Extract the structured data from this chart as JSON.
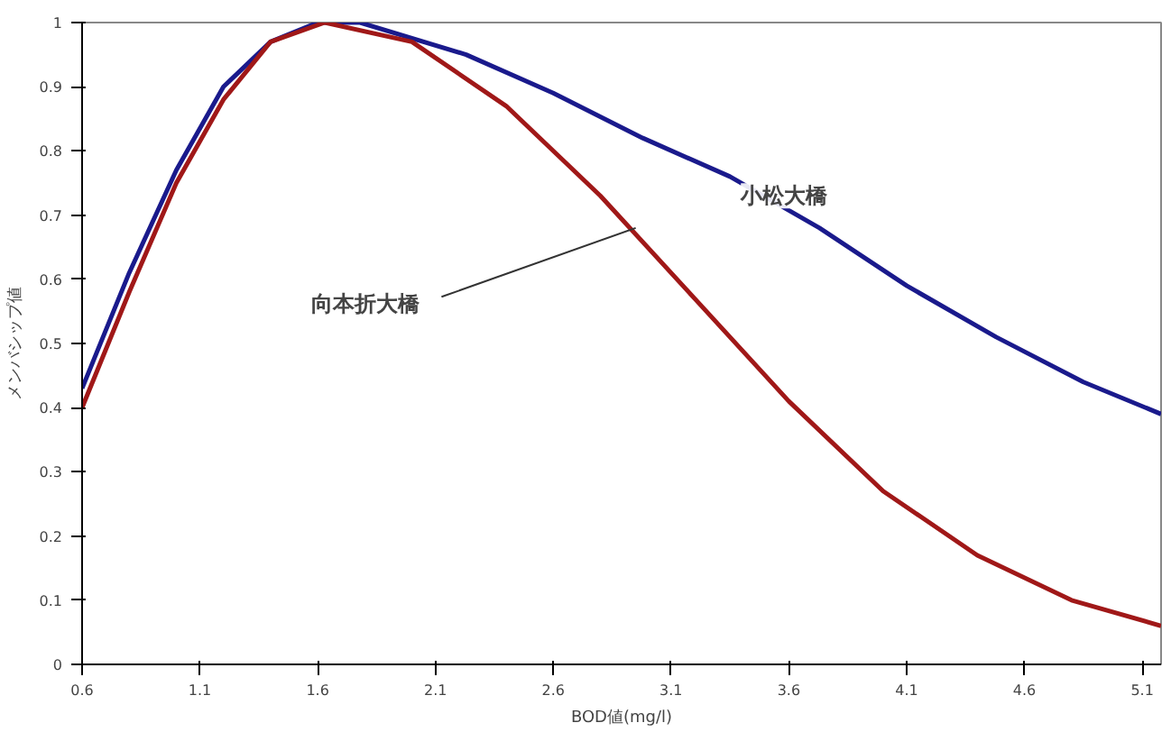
{
  "chart_data": {
    "type": "line",
    "xlabel": "BOD値(mg/l)",
    "ylabel": "メンバシップ値",
    "xlim": [
      0.6,
      5.18
    ],
    "ylim": [
      0,
      1
    ],
    "xticks": [
      0.6,
      1.1,
      1.6,
      2.1,
      2.6,
      3.1,
      3.6,
      4.1,
      4.6,
      5.1
    ],
    "yticks": [
      0,
      0.1,
      0.2,
      0.3,
      0.4,
      0.5,
      0.6,
      0.7,
      0.8,
      0.9,
      1
    ],
    "grid": false,
    "series": [
      {
        "color": "#1a1a8c",
        "x": [
          0.6,
          0.8,
          1.0,
          1.2,
          1.4,
          1.6,
          1.78,
          2.23,
          2.6,
          2.98,
          3.35,
          3.73,
          4.1,
          4.48,
          4.85,
          5.18
        ],
        "values": [
          0.43,
          0.61,
          0.77,
          0.9,
          0.97,
          1.0,
          1.0,
          0.95,
          0.89,
          0.82,
          0.76,
          0.68,
          0.59,
          0.51,
          0.44,
          0.39
        ]
      },
      {
        "color": "#a01818",
        "x": [
          0.6,
          0.8,
          1.0,
          1.2,
          1.4,
          1.63,
          2.0,
          2.4,
          2.8,
          3.2,
          3.6,
          4.0,
          4.4,
          4.8,
          5.18
        ],
        "values": [
          0.4,
          0.58,
          0.75,
          0.88,
          0.97,
          1.0,
          0.97,
          0.87,
          0.73,
          0.57,
          0.41,
          0.27,
          0.17,
          0.1,
          0.06
        ]
      }
    ],
    "annotations": [
      {
        "text": "小松大橋",
        "x": 3.58,
        "y": 0.73
      },
      {
        "text": "向本折大橋",
        "x": 2.95,
        "y": 0.68
      }
    ]
  }
}
